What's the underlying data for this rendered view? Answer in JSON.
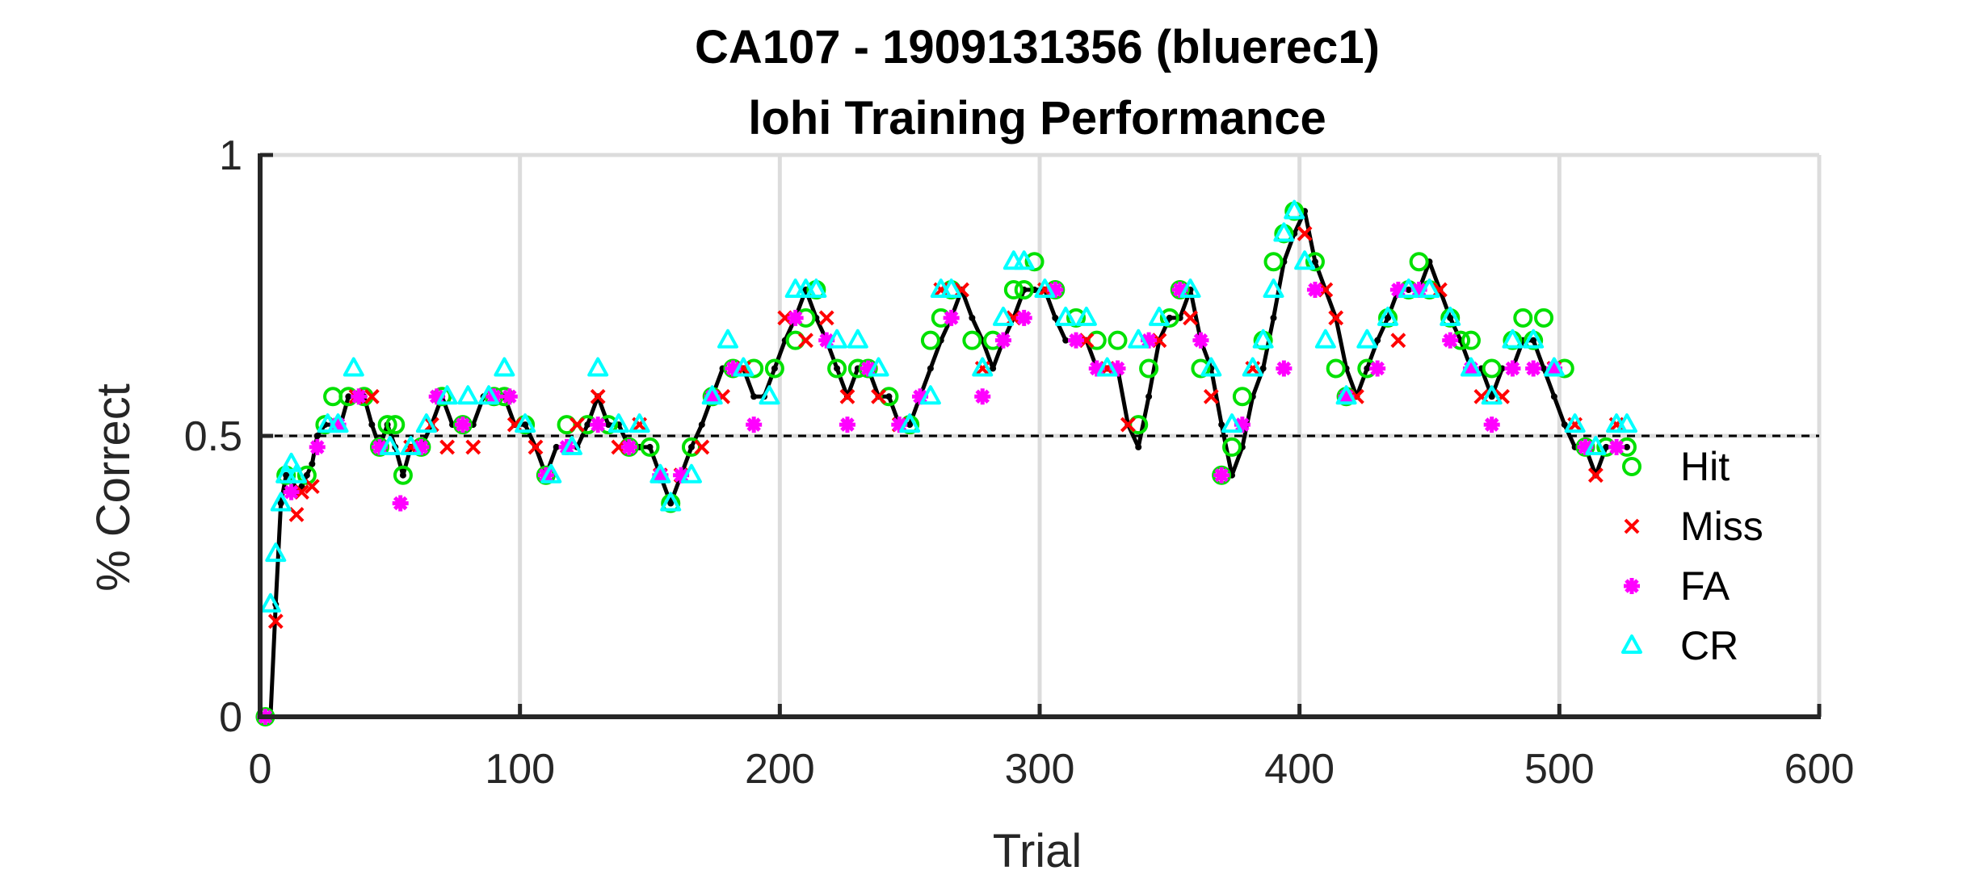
{
  "chart_data": {
    "type": "scatter",
    "title": [
      "CA107 - 1909131356 (bluerec1)",
      "lohi Training Performance"
    ],
    "xlabel": "Trial",
    "ylabel": "% Correct",
    "xlim": [
      0,
      600
    ],
    "ylim": [
      0,
      1
    ],
    "xticks": [
      0,
      100,
      200,
      300,
      400,
      500,
      600
    ],
    "yticks": [
      0,
      0.5,
      1
    ],
    "xtick_labels": [
      "0",
      "100",
      "200",
      "300",
      "400",
      "500",
      "600"
    ],
    "ytick_labels": [
      "0",
      "0.5",
      "1"
    ],
    "grid": true,
    "reference_line": {
      "y": 0.5,
      "style": "dashed",
      "color": "#000000"
    },
    "legend_position": "right",
    "line": {
      "color": "#000000",
      "x": [
        2,
        4,
        6,
        8,
        10,
        12,
        14,
        16,
        18,
        20,
        22,
        25,
        28,
        31,
        34,
        37,
        40,
        43,
        46,
        49,
        52,
        55,
        58,
        62,
        66,
        70,
        74,
        78,
        82,
        86,
        90,
        94,
        98,
        102,
        106,
        110,
        114,
        118,
        122,
        126,
        130,
        134,
        138,
        142,
        146,
        150,
        154,
        158,
        162,
        166,
        170,
        174,
        178,
        182,
        186,
        190,
        194,
        198,
        202,
        206,
        210,
        214,
        218,
        222,
        226,
        230,
        234,
        238,
        242,
        246,
        250,
        254,
        258,
        262,
        266,
        270,
        274,
        278,
        282,
        286,
        290,
        294,
        298,
        302,
        306,
        310,
        314,
        318,
        322,
        326,
        330,
        334,
        338,
        342,
        346,
        350,
        354,
        358,
        362,
        366,
        370,
        374,
        378,
        382,
        386,
        390,
        394,
        398,
        402,
        406,
        410,
        414,
        418,
        422,
        426,
        430,
        434,
        438,
        442,
        446,
        450,
        454,
        458,
        462,
        466,
        470,
        474,
        478,
        482,
        486,
        490,
        494,
        498,
        502,
        506,
        510,
        514,
        518,
        522,
        526
      ],
      "y": [
        0,
        0,
        0.2,
        0.38,
        0.43,
        0.43,
        0.4,
        0.41,
        0.43,
        0.45,
        0.5,
        0.52,
        0.52,
        0.52,
        0.57,
        0.57,
        0.57,
        0.52,
        0.48,
        0.52,
        0.48,
        0.43,
        0.48,
        0.48,
        0.52,
        0.57,
        0.52,
        0.52,
        0.52,
        0.57,
        0.57,
        0.57,
        0.52,
        0.52,
        0.48,
        0.43,
        0.48,
        0.48,
        0.48,
        0.52,
        0.57,
        0.52,
        0.52,
        0.48,
        0.48,
        0.48,
        0.43,
        0.38,
        0.43,
        0.48,
        0.52,
        0.57,
        0.62,
        0.62,
        0.62,
        0.57,
        0.57,
        0.62,
        0.67,
        0.71,
        0.76,
        0.71,
        0.67,
        0.62,
        0.57,
        0.62,
        0.62,
        0.57,
        0.57,
        0.52,
        0.52,
        0.57,
        0.62,
        0.67,
        0.71,
        0.76,
        0.71,
        0.67,
        0.62,
        0.67,
        0.71,
        0.76,
        0.76,
        0.76,
        0.71,
        0.67,
        0.67,
        0.67,
        0.62,
        0.62,
        0.62,
        0.52,
        0.48,
        0.57,
        0.67,
        0.71,
        0.71,
        0.76,
        0.67,
        0.62,
        0.52,
        0.43,
        0.48,
        0.57,
        0.62,
        0.71,
        0.81,
        0.86,
        0.9,
        0.81,
        0.76,
        0.71,
        0.62,
        0.57,
        0.62,
        0.67,
        0.71,
        0.76,
        0.76,
        0.76,
        0.81,
        0.76,
        0.71,
        0.67,
        0.62,
        0.62,
        0.57,
        0.62,
        0.62,
        0.67,
        0.67,
        0.62,
        0.57,
        0.52,
        0.48,
        0.48,
        0.43,
        0.48,
        0.48,
        0.48
      ]
    },
    "series": [
      {
        "name": "Hit",
        "marker": "circle",
        "color": "#00e000",
        "x": [
          2,
          10,
          18,
          25,
          28,
          34,
          40,
          46,
          49,
          52,
          55,
          62,
          70,
          78,
          90,
          94,
          102,
          110,
          118,
          126,
          134,
          142,
          150,
          158,
          166,
          174,
          182,
          190,
          198,
          206,
          210,
          214,
          222,
          230,
          234,
          242,
          250,
          258,
          262,
          266,
          274,
          282,
          290,
          294,
          298,
          306,
          314,
          322,
          330,
          338,
          342,
          350,
          354,
          362,
          370,
          374,
          378,
          386,
          390,
          394,
          398,
          406,
          414,
          418,
          426,
          434,
          442,
          446,
          450,
          458,
          462,
          466,
          474,
          482,
          486,
          490,
          494,
          502,
          510,
          518,
          526
        ],
        "y": [
          0,
          0.43,
          0.43,
          0.52,
          0.57,
          0.57,
          0.57,
          0.48,
          0.52,
          0.52,
          0.43,
          0.48,
          0.57,
          0.52,
          0.57,
          0.57,
          0.52,
          0.43,
          0.52,
          0.52,
          0.52,
          0.48,
          0.48,
          0.38,
          0.48,
          0.57,
          0.62,
          0.62,
          0.62,
          0.67,
          0.71,
          0.76,
          0.62,
          0.62,
          0.62,
          0.57,
          0.52,
          0.67,
          0.71,
          0.76,
          0.67,
          0.67,
          0.76,
          0.76,
          0.81,
          0.76,
          0.71,
          0.67,
          0.67,
          0.52,
          0.62,
          0.71,
          0.76,
          0.62,
          0.43,
          0.48,
          0.57,
          0.67,
          0.81,
          0.86,
          0.9,
          0.81,
          0.62,
          0.57,
          0.62,
          0.71,
          0.76,
          0.81,
          0.76,
          0.71,
          0.67,
          0.67,
          0.62,
          0.67,
          0.71,
          0.67,
          0.71,
          0.62,
          0.48,
          0.48,
          0.48
        ]
      },
      {
        "name": "Miss",
        "marker": "x",
        "color": "#ff0000",
        "x": [
          6,
          14,
          16,
          20,
          37,
          43,
          58,
          66,
          72,
          82,
          98,
          106,
          122,
          130,
          138,
          146,
          154,
          162,
          170,
          178,
          186,
          202,
          210,
          218,
          226,
          238,
          246,
          262,
          270,
          278,
          290,
          302,
          318,
          326,
          334,
          346,
          358,
          366,
          382,
          402,
          410,
          414,
          422,
          438,
          454,
          470,
          478,
          498,
          506,
          514,
          522
        ],
        "y": [
          0.17,
          0.36,
          0.4,
          0.41,
          0.57,
          0.57,
          0.48,
          0.52,
          0.48,
          0.48,
          0.52,
          0.48,
          0.52,
          0.57,
          0.48,
          0.52,
          0.43,
          0.43,
          0.48,
          0.57,
          0.62,
          0.71,
          0.67,
          0.71,
          0.57,
          0.57,
          0.52,
          0.76,
          0.76,
          0.62,
          0.71,
          0.76,
          0.67,
          0.62,
          0.52,
          0.67,
          0.71,
          0.57,
          0.62,
          0.86,
          0.76,
          0.71,
          0.57,
          0.67,
          0.76,
          0.57,
          0.57,
          0.62,
          0.52,
          0.43,
          0.52
        ]
      },
      {
        "name": "FA",
        "marker": "asterisk",
        "color": "#ff00ff",
        "x": [
          2,
          12,
          22,
          30,
          38,
          46,
          54,
          62,
          68,
          78,
          90,
          96,
          110,
          118,
          130,
          142,
          154,
          162,
          174,
          182,
          190,
          206,
          218,
          226,
          234,
          246,
          254,
          266,
          278,
          286,
          294,
          306,
          314,
          322,
          330,
          342,
          354,
          362,
          370,
          378,
          394,
          406,
          418,
          430,
          438,
          446,
          458,
          466,
          474,
          482,
          490,
          498,
          510,
          522
        ],
        "y": [
          0,
          0.4,
          0.48,
          0.52,
          0.57,
          0.48,
          0.38,
          0.48,
          0.57,
          0.52,
          0.57,
          0.57,
          0.43,
          0.48,
          0.52,
          0.48,
          0.43,
          0.43,
          0.57,
          0.62,
          0.52,
          0.71,
          0.67,
          0.52,
          0.62,
          0.52,
          0.57,
          0.71,
          0.57,
          0.67,
          0.71,
          0.76,
          0.67,
          0.62,
          0.62,
          0.67,
          0.76,
          0.67,
          0.43,
          0.52,
          0.62,
          0.76,
          0.57,
          0.62,
          0.76,
          0.76,
          0.67,
          0.62,
          0.52,
          0.62,
          0.62,
          0.62,
          0.48,
          0.48
        ]
      },
      {
        "name": "CR",
        "marker": "triangle",
        "color": "#00ffff",
        "x": [
          4,
          6,
          8,
          10,
          12,
          14,
          26,
          30,
          36,
          50,
          58,
          64,
          72,
          80,
          88,
          94,
          102,
          112,
          120,
          130,
          138,
          146,
          154,
          158,
          166,
          174,
          180,
          186,
          196,
          206,
          210,
          214,
          222,
          230,
          238,
          250,
          258,
          262,
          266,
          278,
          286,
          290,
          294,
          302,
          310,
          318,
          326,
          338,
          346,
          358,
          366,
          374,
          382,
          386,
          390,
          394,
          398,
          402,
          410,
          418,
          426,
          434,
          442,
          450,
          458,
          466,
          474,
          482,
          490,
          498,
          506,
          514,
          522,
          526
        ],
        "y": [
          0.2,
          0.29,
          0.38,
          0.43,
          0.45,
          0.43,
          0.52,
          0.52,
          0.62,
          0.48,
          0.48,
          0.52,
          0.57,
          0.57,
          0.57,
          0.62,
          0.52,
          0.43,
          0.48,
          0.62,
          0.52,
          0.52,
          0.43,
          0.38,
          0.43,
          0.57,
          0.67,
          0.62,
          0.57,
          0.76,
          0.76,
          0.76,
          0.67,
          0.67,
          0.62,
          0.52,
          0.57,
          0.76,
          0.76,
          0.62,
          0.71,
          0.81,
          0.81,
          0.76,
          0.71,
          0.71,
          0.62,
          0.67,
          0.71,
          0.76,
          0.62,
          0.52,
          0.62,
          0.67,
          0.76,
          0.86,
          0.9,
          0.81,
          0.67,
          0.57,
          0.67,
          0.71,
          0.76,
          0.76,
          0.71,
          0.62,
          0.57,
          0.67,
          0.67,
          0.62,
          0.52,
          0.48,
          0.52,
          0.52
        ]
      }
    ]
  }
}
